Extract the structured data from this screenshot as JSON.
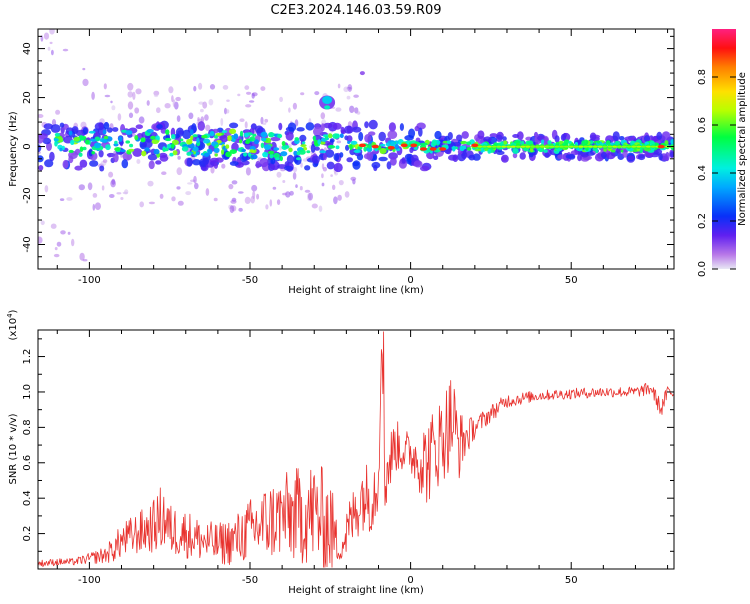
{
  "title": "C2E3.2024.146.03.59.R09",
  "colors": {
    "snr_line": "#e8322e",
    "axis": "#000000",
    "colormap": [
      "#e8e8f4",
      "#b878e8",
      "#6020f0",
      "#0830f8",
      "#00a8ff",
      "#00f0e0",
      "#00ff40",
      "#b8ff00",
      "#ffe000",
      "#ff8000",
      "#ff1010",
      "#ff2080"
    ]
  },
  "chart_data": [
    {
      "type": "heatmap",
      "xlabel": "Height of straight line (km)",
      "ylabel": "Frequency (Hz)",
      "xlim": [
        -116,
        82
      ],
      "ylim": [
        -50,
        48
      ],
      "xticks": [
        -100,
        -50,
        0,
        50
      ],
      "yticks": [
        -40,
        -20,
        0,
        20,
        40
      ],
      "colorbar": {
        "label": "Normalized spectral amplitude",
        "range": [
          0.0,
          1.0
        ],
        "ticks": [
          "0.0",
          "0.2",
          "0.4",
          "0.6",
          "0.8"
        ],
        "tick_values": [
          0.0,
          0.2,
          0.4,
          0.6,
          0.8
        ]
      },
      "features": {
        "main_band_center_hz": 0,
        "main_band_width_hz": [
          -8,
          8
        ],
        "isolated_patch": {
          "x": -26,
          "y": 18
        },
        "isolated_dot": {
          "x": -15,
          "y": 30
        }
      }
    },
    {
      "type": "line",
      "xlabel": "Height of straight line (km)",
      "ylabel": "SNR (10 * v/v)",
      "multiplier": "(x10",
      "multiplier_exp": "4",
      "multiplier_close": ")",
      "xlim": [
        -116,
        82
      ],
      "ylim": [
        0.0,
        1.35
      ],
      "xticks": [
        -100,
        -50,
        0,
        50
      ],
      "yticks": [
        0.2,
        0.4,
        0.6,
        0.8,
        1.0,
        1.2
      ],
      "ytick_labels": [
        "0.2",
        "0.4",
        "0.6",
        "0.8",
        "1.0",
        "1.2"
      ],
      "series": [
        {
          "x": [
            -116,
            -110,
            -105,
            -100,
            -95,
            -92,
            -90,
            -85,
            -80,
            -77,
            -75,
            -70,
            -65,
            -60,
            -55,
            -50,
            -45,
            -40,
            -35,
            -30,
            -25,
            -22,
            -20,
            -15,
            -12,
            -10,
            -9,
            -8,
            -5,
            0,
            5,
            10,
            13,
            15,
            18,
            20,
            25,
            30,
            40,
            50,
            60,
            70,
            75,
            78,
            80,
            82
          ],
          "y": [
            0.03,
            0.04,
            0.04,
            0.06,
            0.08,
            0.12,
            0.16,
            0.2,
            0.24,
            0.3,
            0.22,
            0.2,
            0.16,
            0.14,
            0.16,
            0.22,
            0.26,
            0.3,
            0.3,
            0.32,
            0.24,
            0.1,
            0.2,
            0.42,
            0.4,
            0.55,
            1.3,
            0.5,
            0.7,
            0.65,
            0.6,
            0.75,
            0.85,
            0.7,
            0.76,
            0.8,
            0.88,
            0.95,
            0.98,
            0.99,
            1.0,
            1.0,
            1.02,
            0.9,
            1.0,
            0.99
          ],
          "noise": [
            0.02,
            0.02,
            0.02,
            0.03,
            0.05,
            0.08,
            0.1,
            0.12,
            0.15,
            0.2,
            0.15,
            0.14,
            0.12,
            0.12,
            0.14,
            0.18,
            0.22,
            0.24,
            0.28,
            0.3,
            0.3,
            0.05,
            0.15,
            0.2,
            0.2,
            0.25,
            0.0,
            0.2,
            0.15,
            0.12,
            0.25,
            0.25,
            0.3,
            0.2,
            0.1,
            0.06,
            0.05,
            0.04,
            0.03,
            0.03,
            0.03,
            0.03,
            0.04,
            0.05,
            0.04,
            0.03
          ]
        }
      ]
    }
  ]
}
